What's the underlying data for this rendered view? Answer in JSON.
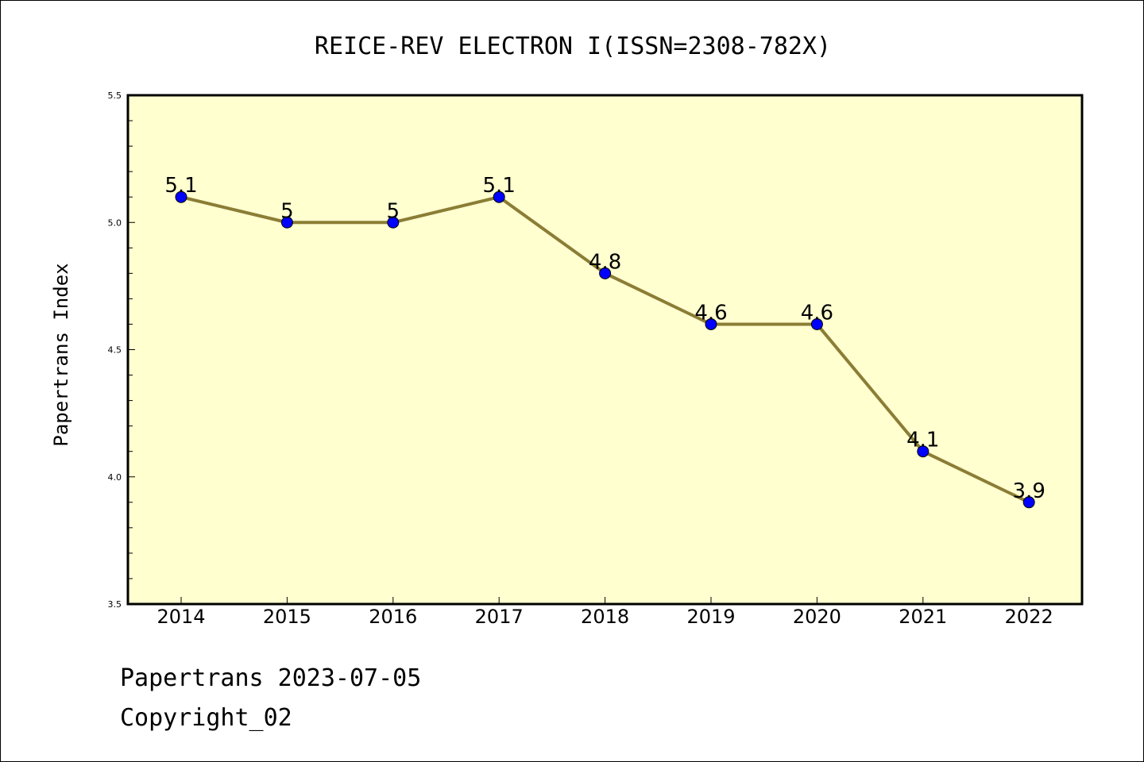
{
  "chart_data": {
    "type": "line",
    "title": "REICE-REV ELECTRON I(ISSN=2308-782X)",
    "ylabel": "Papertrans Index",
    "xlabel": "",
    "categories": [
      "2014",
      "2015",
      "2016",
      "2017",
      "2018",
      "2019",
      "2020",
      "2021",
      "2022"
    ],
    "values": [
      5.1,
      5.0,
      5.0,
      5.1,
      4.8,
      4.6,
      4.6,
      4.1,
      3.9
    ],
    "data_labels": [
      "5.1",
      "5",
      "5",
      "5.1",
      "4.8",
      "4.6",
      "4.6",
      "4.1",
      "3.9"
    ],
    "ylim": [
      3.5,
      5.5
    ],
    "yticks": [
      "3.5",
      "4.0",
      "4.5",
      "5.0",
      "5.5"
    ],
    "grid": false,
    "legend": "none",
    "colors": {
      "plot_background": "#ffffd0",
      "line": "#8b7d35",
      "marker": "#0000ff"
    }
  },
  "footer": {
    "line1": "Papertrans 2023-07-05",
    "line2": "Copyright_02"
  }
}
